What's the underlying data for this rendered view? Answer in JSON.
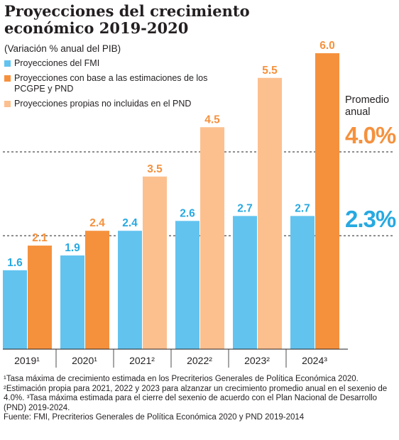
{
  "title": "Proyecciones del crecimiento económico 2019-2020",
  "subtitle": "(Variación % anual del PIB)",
  "legend": [
    {
      "label": "Proyecciones del FMI",
      "color": "#62c3ef"
    },
    {
      "label": "Proyecciones con base a las estimaciones de los PCGPE y PND",
      "color": "#f5913d"
    },
    {
      "label": "Proyecciones propias no incluidas en el PND",
      "color": "#fcc08f"
    }
  ],
  "average": {
    "heading": "Promedio anual",
    "high": {
      "label": "4.0%",
      "value": 4.0,
      "color": "#f5913d"
    },
    "low": {
      "label": "2.3%",
      "value": 2.3,
      "color": "#27a9e1"
    }
  },
  "chart_data": {
    "type": "bar",
    "categories": [
      "2019¹",
      "2020¹",
      "2021²",
      "2022²",
      "2023²",
      "2024³"
    ],
    "series": [
      {
        "name": "Proyecciones del FMI",
        "values": [
          1.6,
          1.9,
          2.4,
          2.6,
          2.7,
          2.7
        ]
      },
      {
        "name": "Proyecciones con base a las estimaciones de los PCGPE y PND / Proyecciones propias no incluidas en el PND",
        "values": [
          2.1,
          2.4,
          3.5,
          4.5,
          5.5,
          6.0
        ],
        "colors": [
          "#f5913d",
          "#f5913d",
          "#fcc08f",
          "#fcc08f",
          "#fcc08f",
          "#f5913d"
        ]
      }
    ],
    "value_labels": {
      "imf": [
        "1.6",
        "1.9",
        "2.4",
        "2.6",
        "2.7",
        "2.7"
      ],
      "second": [
        "2.1",
        "2.4",
        "3.5",
        "4.5",
        "5.5",
        "6.0"
      ]
    },
    "reference_lines": [
      4.0,
      2.3
    ],
    "colors": {
      "imf": "#62c3ef",
      "imf_label": "#27a9e1",
      "orange": "#f5913d",
      "light": "#fcc08f",
      "light_label": "#f5913d"
    },
    "ylim": [
      0,
      6.0
    ]
  },
  "footnotes": [
    "¹Tasa máxima de crecimiento estimada en los Precriterios Generales de Política Económica 2020. ²Estimación propia para 2021, 2022 y 2023 para alzanzar un crecimiento promedio anual en el sexenio de 4.0%. ³Tasa máxima estimada para el cierre del sexenio de acuerdo con el Plan Nacional de Desarrollo (PND) 2019-2024.",
    "Fuente: FMI, Precriterios Generales de Política Económica 2020 y PND 2019-2014"
  ]
}
